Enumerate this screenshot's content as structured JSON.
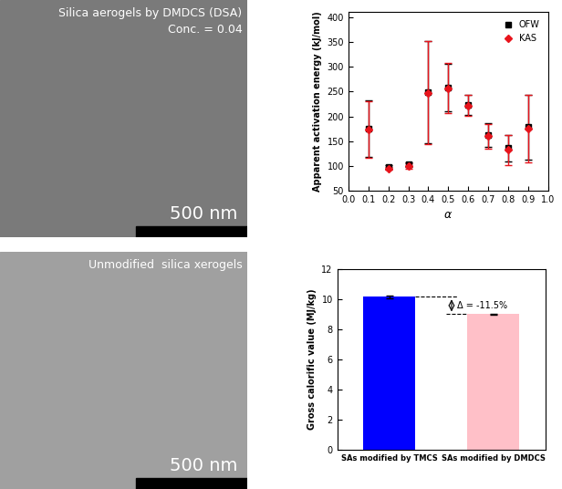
{
  "panels": [
    {
      "title": "Silica aerogels by DMDCS (DSA)",
      "subtitle": "Conc. = 0.04",
      "scale_bar": "500 nm"
    },
    {
      "title": "Unmodified  silica xerogels",
      "scale_bar": "500 nm"
    }
  ],
  "chart_data": [
    {
      "type": "scatter",
      "x_label": "α",
      "y_label": "Apparent activation energy (kJ/mol)",
      "x": [
        0.1,
        0.2,
        0.3,
        0.4,
        0.5,
        0.6,
        0.7,
        0.8,
        0.9
      ],
      "series": [
        {
          "name": "OFW",
          "color": "#000000",
          "marker": "square",
          "values": [
            175,
            98,
            103,
            248,
            258,
            223,
            163,
            136,
            178
          ],
          "errors": [
            57,
            3,
            5,
            103,
            48,
            20,
            24,
            27,
            66
          ]
        },
        {
          "name": "KAS",
          "color": "#e8141c",
          "marker": "diamond",
          "values": [
            173,
            95,
            100,
            247,
            257,
            222,
            160,
            132,
            176
          ],
          "errors": [
            57,
            3,
            6,
            104,
            50,
            21,
            25,
            30,
            68
          ]
        }
      ],
      "xlim": [
        0.0,
        1.0
      ],
      "xticks": [
        0.0,
        0.1,
        0.2,
        0.3,
        0.4,
        0.5,
        0.6,
        0.7,
        0.8,
        0.9,
        1.0
      ],
      "ylim": [
        50,
        410
      ],
      "yticks": [
        50,
        100,
        150,
        200,
        250,
        300,
        350,
        400
      ],
      "legend": "upper right"
    },
    {
      "type": "bar",
      "y_label": "Gross calorific value (MJ/kg)",
      "categories": [
        "SAs modified by TMCS",
        "SAs modified by DMDCS"
      ],
      "values": [
        10.15,
        9.0
      ],
      "errors": [
        0.08,
        0.05
      ],
      "colors": [
        "#0000ff",
        "#ffc0c8"
      ],
      "annotation": "Δ = -11.5%",
      "ylim": [
        0,
        12
      ],
      "yticks": [
        0,
        2,
        4,
        6,
        8,
        10,
        12
      ]
    }
  ]
}
